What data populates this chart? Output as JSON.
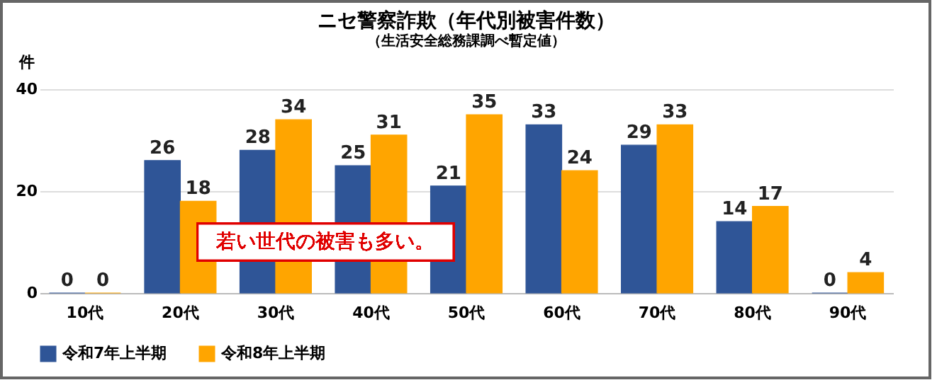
{
  "chart_data": {
    "type": "bar",
    "title": "ニセ警察詐欺（年代別被害件数）",
    "subtitle": "（生活安全総務課調べ暫定値）",
    "ylabel": "件",
    "categories": [
      "10代",
      "20代",
      "30代",
      "40代",
      "50代",
      "60代",
      "70代",
      "80代",
      "90代"
    ],
    "series": [
      {
        "name": "令和7年上半期",
        "color": "#2f5597",
        "values": [
          0,
          26,
          28,
          25,
          21,
          33,
          29,
          14,
          0
        ]
      },
      {
        "name": "令和8年上半期",
        "color": "#ffa500",
        "values": [
          0,
          18,
          34,
          31,
          35,
          24,
          33,
          17,
          4
        ]
      }
    ],
    "ylim": [
      0,
      40
    ],
    "yticks": [
      0,
      20,
      40
    ],
    "grid": "y",
    "legend": "bottom",
    "data_labels": true,
    "annotations": [
      "若い世代の被害も多い。"
    ]
  }
}
